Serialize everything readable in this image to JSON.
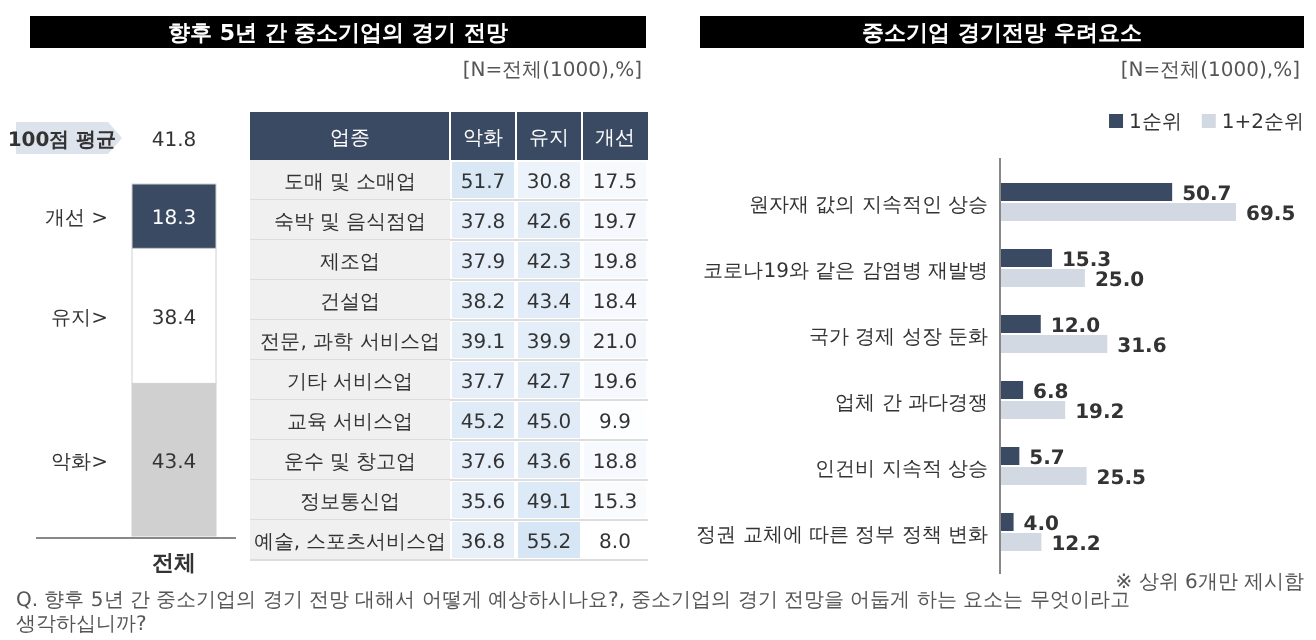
{
  "chart_data": [
    {
      "type": "bar",
      "stacked": true,
      "title": "향후 5년 간 중소기업의 경기 전망",
      "categories": [
        "전체"
      ],
      "data_labels": true,
      "series": [
        {
          "name": "악화>",
          "color": "#d0d0d0",
          "values": [
            43.4
          ]
        },
        {
          "name": "유지>",
          "color": "#ffffff",
          "values": [
            38.4
          ]
        },
        {
          "name": "개선 >",
          "color": "#3b4a63",
          "values": [
            18.3
          ]
        }
      ],
      "annotations": [
        "[N=전체(1000),%]",
        "100점 평균",
        "41.8",
        "Q. 향후 5년 간 중소기업의 경기 전망 대해서 어떻게 예상하시나요?, 중소기업의 경기 전망을 어둡게 하는 요소는 무엇이라고 생각하십니까?"
      ]
    },
    {
      "type": "heatmap",
      "data_labels": true,
      "ylabel": "업종",
      "cell_labels": [
        [
          "51.7",
          "30.8",
          "17.5"
        ],
        [
          "37.8",
          "42.6",
          "19.7"
        ],
        [
          "37.9",
          "42.3",
          "19.8"
        ],
        [
          "38.2",
          "43.4",
          "18.4"
        ],
        [
          "39.1",
          "39.9",
          "21.0"
        ],
        [
          "37.7",
          "42.7",
          "19.6"
        ],
        [
          "45.2",
          "45.0",
          "9.9"
        ],
        [
          "37.6",
          "43.6",
          "18.8"
        ],
        [
          "35.6",
          "49.1",
          "15.3"
        ],
        [
          "36.8",
          "55.2",
          "8.0"
        ]
      ],
      "categories": [
        "악화",
        "유지",
        "개선"
      ],
      "y_categories": [
        "도매 및 소매업",
        "숙박 및 음식점업",
        "제조업",
        "건설업",
        "전문, 과학 서비스업",
        "기타 서비스업",
        "교육 서비스업",
        "운수 및 창고업",
        "정보통신업",
        "예술, 스포츠서비스업"
      ],
      "cells": [
        [
          51.7,
          30.8,
          17.5
        ],
        [
          37.8,
          42.6,
          19.7
        ],
        [
          37.9,
          42.3,
          19.8
        ],
        [
          38.2,
          43.4,
          18.4
        ],
        [
          39.1,
          39.9,
          21.0
        ],
        [
          37.7,
          42.7,
          19.6
        ],
        [
          45.2,
          45.0,
          9.9
        ],
        [
          37.6,
          43.6,
          18.8
        ],
        [
          35.6,
          49.1,
          15.3
        ],
        [
          36.8,
          55.2,
          8.0
        ]
      ]
    },
    {
      "type": "bar",
      "orientation": "horizontal",
      "title": "중소기업 경기전망 우려요소",
      "legend": "top right",
      "categories": [
        "원자재 값의 지속적인 상승",
        "코로나19와 같은 감염병 재발병",
        "국가 경제 성장 둔화",
        "업체 간 과다경쟁",
        "인건비 지속적 상승",
        "정권 교체에 따른 정부 정책 변화"
      ],
      "series": [
        {
          "name": "1순위",
          "color": "#3b4a63",
          "values": [
            50.7,
            15.3,
            12.0,
            6.8,
            5.7,
            4.0
          ],
          "value_labels": [
            "50.7",
            "15.3",
            "12.0",
            "6.8",
            "5.7",
            "4.0"
          ]
        },
        {
          "name": "1+2순위",
          "color": "#d3d9e2",
          "values": [
            69.5,
            25.0,
            31.6,
            19.2,
            25.5,
            12.2
          ],
          "value_labels": [
            "69.5",
            "25.0",
            "31.6",
            "19.2",
            "25.5",
            "12.2"
          ]
        }
      ],
      "annotations": [
        "[N=전체(1000),%]",
        "※ 상위 6개만 제시함"
      ]
    }
  ]
}
